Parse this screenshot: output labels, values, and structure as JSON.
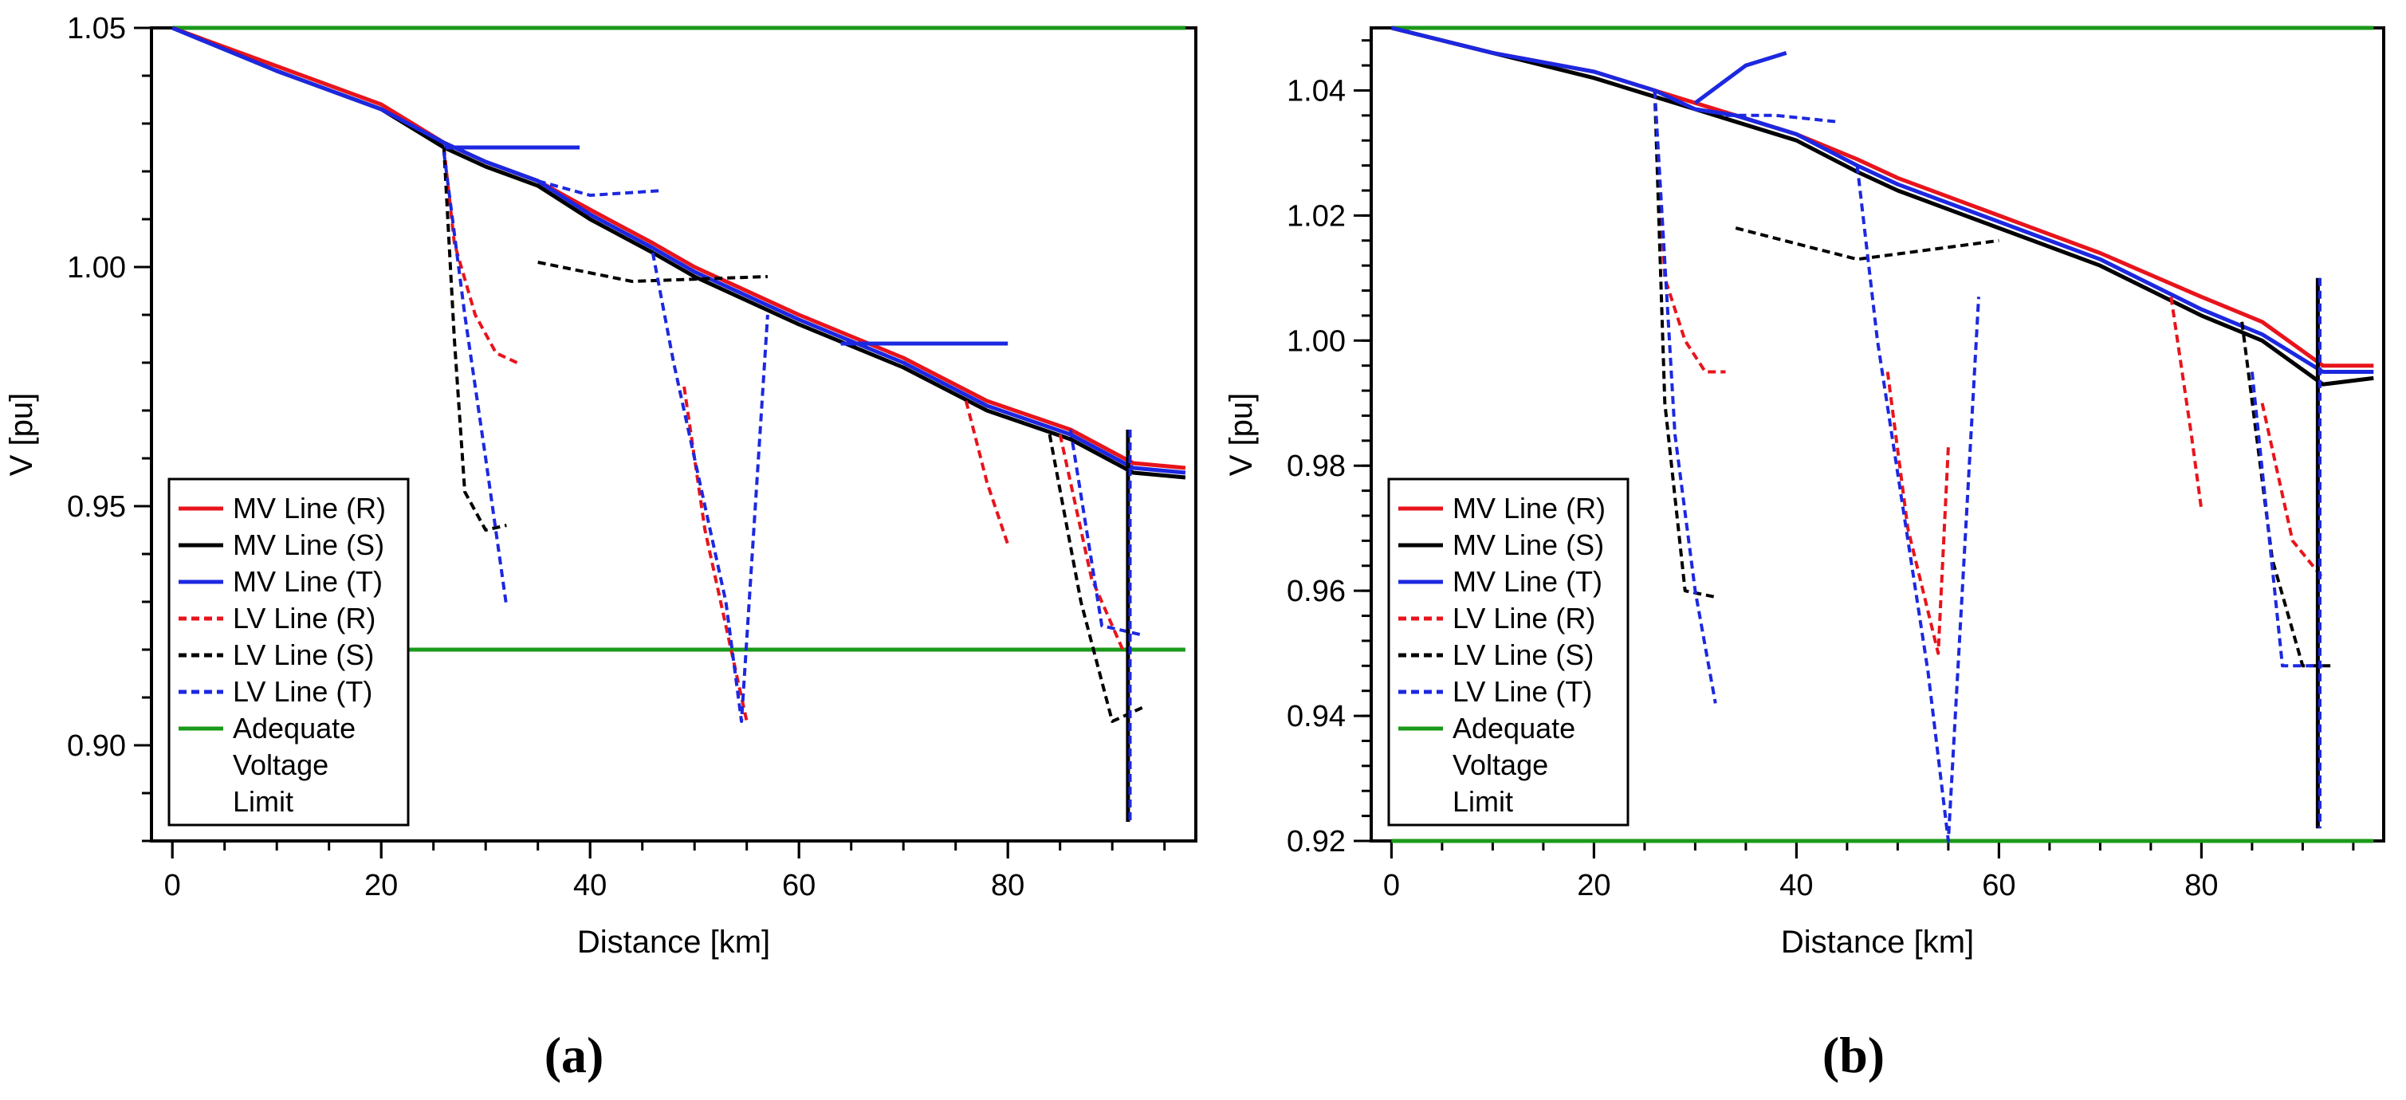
{
  "chart_data": [
    {
      "type": "line",
      "panel_label": "(a)",
      "xlabel": "Distance [km]",
      "ylabel": "V [pu]",
      "xlim": [
        -2,
        98
      ],
      "ylim": [
        0.88,
        1.05
      ],
      "xticks": [
        0,
        20,
        40,
        60,
        80
      ],
      "yticks": [
        0.9,
        0.95,
        1.0,
        1.05
      ],
      "xtick_labels": [
        "0",
        "20",
        "40",
        "60",
        "80"
      ],
      "ytick_labels": [
        "0.90",
        "0.95",
        "1.00",
        "1.05"
      ],
      "legend_position": "bottom-left",
      "legend": [
        {
          "label": "MV Line (R)",
          "color": "#e8141c",
          "dash": "solid"
        },
        {
          "label": "MV Line (S)",
          "color": "#000000",
          "dash": "solid"
        },
        {
          "label": "MV Line (T)",
          "color": "#1c28e0",
          "dash": "solid"
        },
        {
          "label": "LV Line (R)",
          "color": "#e8141c",
          "dash": "dotted"
        },
        {
          "label": "LV Line (S)",
          "color": "#000000",
          "dash": "dotted"
        },
        {
          "label": "LV Line (T)",
          "color": "#1c28e0",
          "dash": "dotted"
        },
        {
          "label": "Adequate\nVoltage\nLimit",
          "color": "#1a9a1a",
          "dash": "solid"
        }
      ],
      "series": [
        {
          "name": "Adequate Voltage Limit (upper)",
          "color": "#1a9a1a",
          "dash": "solid",
          "x": [
            0,
            97
          ],
          "y": [
            1.05,
            1.05
          ]
        },
        {
          "name": "Adequate Voltage Limit (lower)",
          "color": "#1a9a1a",
          "dash": "solid",
          "x": [
            22,
            97
          ],
          "y": [
            0.92,
            0.92
          ]
        },
        {
          "name": "MV Line (R)",
          "color": "#e8141c",
          "dash": "solid",
          "x": [
            0,
            10,
            20,
            26,
            30,
            35,
            40,
            46,
            50,
            60,
            70,
            78,
            86,
            92,
            97
          ],
          "y": [
            1.05,
            1.042,
            1.034,
            1.026,
            1.022,
            1.018,
            1.012,
            1.005,
            1.0,
            0.99,
            0.981,
            0.972,
            0.966,
            0.959,
            0.958
          ]
        },
        {
          "name": "MV Line (S)",
          "color": "#000000",
          "dash": "solid",
          "x": [
            0,
            10,
            20,
            26,
            30,
            35,
            40,
            46,
            50,
            60,
            70,
            78,
            86,
            92,
            97
          ],
          "y": [
            1.05,
            1.041,
            1.033,
            1.025,
            1.021,
            1.017,
            1.01,
            1.003,
            0.998,
            0.988,
            0.979,
            0.97,
            0.964,
            0.957,
            0.956
          ]
        },
        {
          "name": "MV Line (T)",
          "color": "#1c28e0",
          "dash": "solid",
          "x": [
            0,
            10,
            20,
            26,
            30,
            35,
            40,
            46,
            50,
            60,
            70,
            78,
            86,
            92,
            97
          ],
          "y": [
            1.05,
            1.041,
            1.033,
            1.026,
            1.022,
            1.018,
            1.011,
            1.004,
            0.999,
            0.989,
            0.98,
            0.971,
            0.965,
            0.958,
            0.957
          ]
        },
        {
          "name": "MV Line (T) branch 1",
          "color": "#1c28e0",
          "dash": "solid",
          "x": [
            26,
            39
          ],
          "y": [
            1.025,
            1.025
          ]
        },
        {
          "name": "MV Line (T) branch 2",
          "color": "#1c28e0",
          "dash": "solid",
          "x": [
            64,
            80
          ],
          "y": [
            0.984,
            0.984
          ]
        },
        {
          "name": "LV Line (R) 1",
          "color": "#e8141c",
          "dash": "dotted",
          "x": [
            26,
            27,
            29,
            31,
            33
          ],
          "y": [
            1.025,
            1.005,
            0.99,
            0.982,
            0.98
          ]
        },
        {
          "name": "LV Line (R) 2",
          "color": "#e8141c",
          "dash": "dotted",
          "x": [
            49,
            51,
            55
          ],
          "y": [
            0.975,
            0.945,
            0.905
          ]
        },
        {
          "name": "LV Line (R) 3",
          "color": "#e8141c",
          "dash": "dotted",
          "x": [
            85,
            88,
            91
          ],
          "y": [
            0.965,
            0.935,
            0.92
          ]
        },
        {
          "name": "LV Line (R) 4",
          "color": "#e8141c",
          "dash": "dotted",
          "x": [
            76,
            78,
            80
          ],
          "y": [
            0.972,
            0.955,
            0.942
          ]
        },
        {
          "name": "LV Line (S) 1",
          "color": "#000000",
          "dash": "dotted",
          "x": [
            26,
            27,
            28,
            30,
            32
          ],
          "y": [
            1.025,
            0.985,
            0.953,
            0.945,
            0.946
          ]
        },
        {
          "name": "LV Line (S) 2",
          "color": "#000000",
          "dash": "dotted",
          "x": [
            35,
            44,
            57
          ],
          "y": [
            1.001,
            0.997,
            0.998
          ]
        },
        {
          "name": "LV Line (S) 3",
          "color": "#000000",
          "dash": "dotted",
          "x": [
            84,
            87,
            90,
            93
          ],
          "y": [
            0.965,
            0.93,
            0.905,
            0.908
          ]
        },
        {
          "name": "LV Line (T) 1",
          "color": "#1c28e0",
          "dash": "dotted",
          "x": [
            26,
            28,
            30,
            32
          ],
          "y": [
            1.024,
            0.99,
            0.96,
            0.929
          ]
        },
        {
          "name": "LV Line (T) 2",
          "color": "#1c28e0",
          "dash": "dotted",
          "x": [
            46,
            48,
            53,
            54.5,
            57
          ],
          "y": [
            1.003,
            0.98,
            0.93,
            0.905,
            0.99
          ]
        },
        {
          "name": "LV Line (T) 3",
          "color": "#1c28e0",
          "dash": "dotted",
          "x": [
            35,
            40,
            47
          ],
          "y": [
            1.018,
            1.015,
            1.016
          ]
        },
        {
          "name": "LV Line (T) 4",
          "color": "#1c28e0",
          "dash": "dotted",
          "x": [
            86,
            89,
            93
          ],
          "y": [
            0.966,
            0.925,
            0.923
          ]
        },
        {
          "name": "Drop (S)",
          "color": "#000000",
          "dash": "solid",
          "x": [
            91.5,
            91.5
          ],
          "y": [
            0.966,
            0.884
          ]
        },
        {
          "name": "Drop (T)",
          "color": "#1c28e0",
          "dash": "dotted",
          "x": [
            91.7,
            91.7
          ],
          "y": [
            0.966,
            0.884
          ]
        }
      ]
    },
    {
      "type": "line",
      "panel_label": "(b)",
      "xlabel": "Distance [km]",
      "ylabel": "V [pu]",
      "xlim": [
        -2,
        98
      ],
      "ylim": [
        0.92,
        1.05
      ],
      "xticks": [
        0,
        20,
        40,
        60,
        80
      ],
      "yticks": [
        0.92,
        0.94,
        0.96,
        0.98,
        1.0,
        1.02,
        1.04
      ],
      "xtick_labels": [
        "0",
        "20",
        "40",
        "60",
        "80"
      ],
      "ytick_labels": [
        "0.92",
        "0.94",
        "0.96",
        "0.98",
        "1.00",
        "1.02",
        "1.04"
      ],
      "legend_position": "bottom-left",
      "legend": [
        {
          "label": "MV Line (R)",
          "color": "#e8141c",
          "dash": "solid"
        },
        {
          "label": "MV Line (S)",
          "color": "#000000",
          "dash": "solid"
        },
        {
          "label": "MV Line (T)",
          "color": "#1c28e0",
          "dash": "solid"
        },
        {
          "label": "LV Line (R)",
          "color": "#e8141c",
          "dash": "dotted"
        },
        {
          "label": "LV Line (S)",
          "color": "#000000",
          "dash": "dotted"
        },
        {
          "label": "LV Line (T)",
          "color": "#1c28e0",
          "dash": "dotted"
        },
        {
          "label": "Adequate\nVoltage\nLimit",
          "color": "#1a9a1a",
          "dash": "solid"
        }
      ],
      "series": [
        {
          "name": "Adequate Voltage Limit (upper)",
          "color": "#1a9a1a",
          "dash": "solid",
          "x": [
            0,
            97
          ],
          "y": [
            1.05,
            1.05
          ]
        },
        {
          "name": "Adequate Voltage Limit (lower)",
          "color": "#1a9a1a",
          "dash": "solid",
          "x": [
            0,
            97
          ],
          "y": [
            0.92,
            0.92
          ]
        },
        {
          "name": "MV Line (R)",
          "color": "#e8141c",
          "dash": "solid",
          "x": [
            0,
            10,
            20,
            26,
            30,
            34,
            40,
            46,
            50,
            60,
            70,
            80,
            86,
            92,
            97
          ],
          "y": [
            1.05,
            1.046,
            1.043,
            1.04,
            1.038,
            1.036,
            1.033,
            1.029,
            1.026,
            1.02,
            1.014,
            1.007,
            1.003,
            0.996,
            0.996
          ]
        },
        {
          "name": "MV Line (S)",
          "color": "#000000",
          "dash": "solid",
          "x": [
            0,
            10,
            20,
            26,
            30,
            34,
            40,
            46,
            50,
            60,
            70,
            80,
            86,
            92,
            97
          ],
          "y": [
            1.05,
            1.046,
            1.042,
            1.039,
            1.037,
            1.035,
            1.032,
            1.027,
            1.024,
            1.018,
            1.012,
            1.004,
            1.0,
            0.993,
            0.994
          ]
        },
        {
          "name": "MV Line (T)",
          "color": "#1c28e0",
          "dash": "solid",
          "x": [
            0,
            10,
            20,
            26,
            30,
            34,
            40,
            46,
            50,
            60,
            70,
            80,
            86,
            92,
            97
          ],
          "y": [
            1.05,
            1.046,
            1.043,
            1.04,
            1.037,
            1.036,
            1.033,
            1.028,
            1.025,
            1.019,
            1.013,
            1.005,
            1.001,
            0.995,
            0.995
          ]
        },
        {
          "name": "MV Line (T) branch 1",
          "color": "#1c28e0",
          "dash": "solid",
          "x": [
            30,
            35,
            39
          ],
          "y": [
            1.038,
            1.044,
            1.046
          ]
        },
        {
          "name": "LV Line (R) 1",
          "color": "#e8141c",
          "dash": "dotted",
          "x": [
            26,
            27,
            29,
            31,
            33
          ],
          "y": [
            1.04,
            1.01,
            1.0,
            0.995,
            0.995
          ]
        },
        {
          "name": "LV Line (R) 2",
          "color": "#e8141c",
          "dash": "dotted",
          "x": [
            49,
            51,
            54,
            55
          ],
          "y": [
            0.995,
            0.97,
            0.95,
            0.983
          ]
        },
        {
          "name": "LV Line (R) 3",
          "color": "#e8141c",
          "dash": "dotted",
          "x": [
            86,
            89,
            92
          ],
          "y": [
            0.99,
            0.968,
            0.962
          ]
        },
        {
          "name": "LV Line (R) 4",
          "color": "#e8141c",
          "dash": "dotted",
          "x": [
            77,
            79,
            80
          ],
          "y": [
            1.007,
            0.985,
            0.973
          ]
        },
        {
          "name": "LV Line (S) 1",
          "color": "#000000",
          "dash": "dotted",
          "x": [
            26,
            27,
            29,
            32
          ],
          "y": [
            1.04,
            0.99,
            0.96,
            0.959
          ]
        },
        {
          "name": "LV Line (S) 2",
          "color": "#000000",
          "dash": "dotted",
          "x": [
            34,
            46,
            60
          ],
          "y": [
            1.018,
            1.013,
            1.016
          ]
        },
        {
          "name": "LV Line (S) 3",
          "color": "#000000",
          "dash": "dotted",
          "x": [
            84,
            87,
            90,
            93
          ],
          "y": [
            1.003,
            0.965,
            0.948,
            0.948
          ]
        },
        {
          "name": "LV Line (T) 1",
          "color": "#1c28e0",
          "dash": "dotted",
          "x": [
            26,
            28,
            30,
            32
          ],
          "y": [
            1.04,
            0.985,
            0.96,
            0.942
          ]
        },
        {
          "name": "LV Line (T) 2",
          "color": "#1c28e0",
          "dash": "dotted",
          "x": [
            46,
            48,
            53,
            55,
            58
          ],
          "y": [
            1.028,
            1.0,
            0.947,
            0.92,
            1.007
          ]
        },
        {
          "name": "LV Line (T) 3",
          "color": "#1c28e0",
          "dash": "dotted",
          "x": [
            33,
            38,
            44
          ],
          "y": [
            1.036,
            1.036,
            1.035
          ]
        },
        {
          "name": "LV Line (T) 4",
          "color": "#1c28e0",
          "dash": "dotted",
          "x": [
            85,
            88,
            92
          ],
          "y": [
            0.995,
            0.948,
            0.948
          ]
        },
        {
          "name": "Drop (S)",
          "color": "#000000",
          "dash": "solid",
          "x": [
            91.5,
            91.5
          ],
          "y": [
            1.01,
            0.922
          ]
        },
        {
          "name": "Drop (T)",
          "color": "#1c28e0",
          "dash": "dotted",
          "x": [
            91.7,
            91.7
          ],
          "y": [
            1.01,
            0.922
          ]
        }
      ]
    }
  ]
}
